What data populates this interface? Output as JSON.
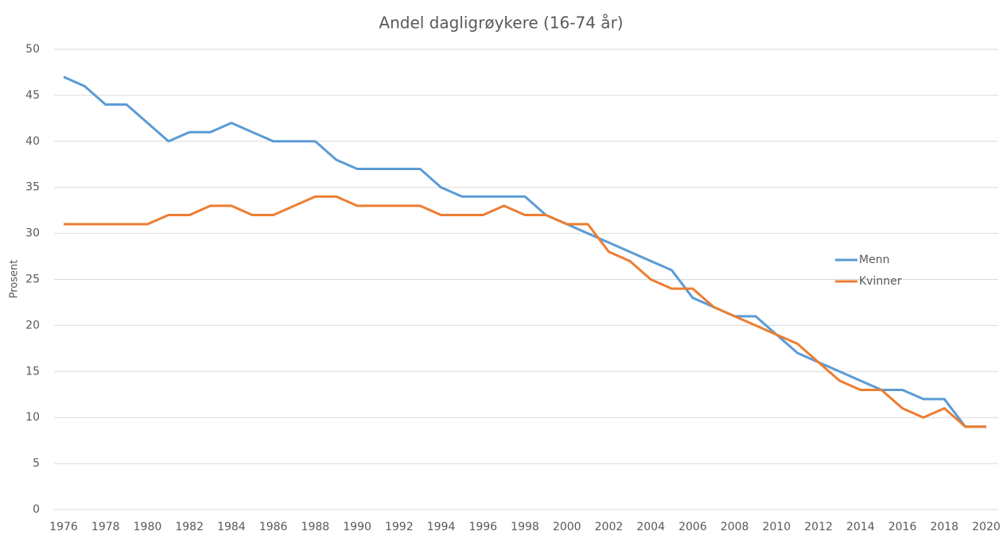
{
  "chart_data": {
    "type": "line",
    "title": "Andel dagligrøykere (16-74 år)",
    "ylabel": "Prosent",
    "x": [
      1976,
      1977,
      1978,
      1979,
      1980,
      1981,
      1982,
      1983,
      1984,
      1985,
      1986,
      1987,
      1988,
      1989,
      1990,
      1991,
      1992,
      1993,
      1994,
      1995,
      1996,
      1997,
      1998,
      1999,
      2000,
      2001,
      2002,
      2003,
      2004,
      2005,
      2006,
      2007,
      2008,
      2009,
      2010,
      2011,
      2012,
      2013,
      2014,
      2015,
      2016,
      2017,
      2018,
      2019,
      2020
    ],
    "series": [
      {
        "name": "Menn",
        "color": "#5b9bd5",
        "values": [
          47,
          46,
          44,
          44,
          42,
          40,
          41,
          41,
          42,
          41,
          40,
          40,
          40,
          38,
          37,
          37,
          37,
          37,
          35,
          34,
          34,
          34,
          34,
          32,
          31,
          30,
          29,
          28,
          27,
          26,
          23,
          22,
          21,
          21,
          19,
          17,
          16,
          15,
          14,
          13,
          13,
          12,
          12,
          9,
          9
        ]
      },
      {
        "name": "Kvinner",
        "color": "#ed7d31",
        "values": [
          31,
          31,
          31,
          31,
          31,
          32,
          32,
          33,
          33,
          32,
          32,
          33,
          34,
          34,
          33,
          33,
          33,
          33,
          32,
          32,
          32,
          33,
          32,
          32,
          31,
          31,
          28,
          27,
          25,
          24,
          24,
          22,
          21,
          20,
          19,
          18,
          16,
          14,
          13,
          13,
          11,
          10,
          11,
          9,
          9
        ]
      }
    ],
    "xlim": [
      1976,
      2020
    ],
    "xticks": [
      1976,
      1978,
      1980,
      1982,
      1984,
      1986,
      1988,
      1990,
      1992,
      1994,
      1996,
      1998,
      2000,
      2002,
      2004,
      2006,
      2008,
      2010,
      2012,
      2014,
      2016,
      2018,
      2020
    ],
    "ylim": [
      0,
      50
    ],
    "yticks": [
      0,
      5,
      10,
      15,
      20,
      25,
      30,
      35,
      40,
      45,
      50
    ],
    "grid": true,
    "legend": "right"
  }
}
